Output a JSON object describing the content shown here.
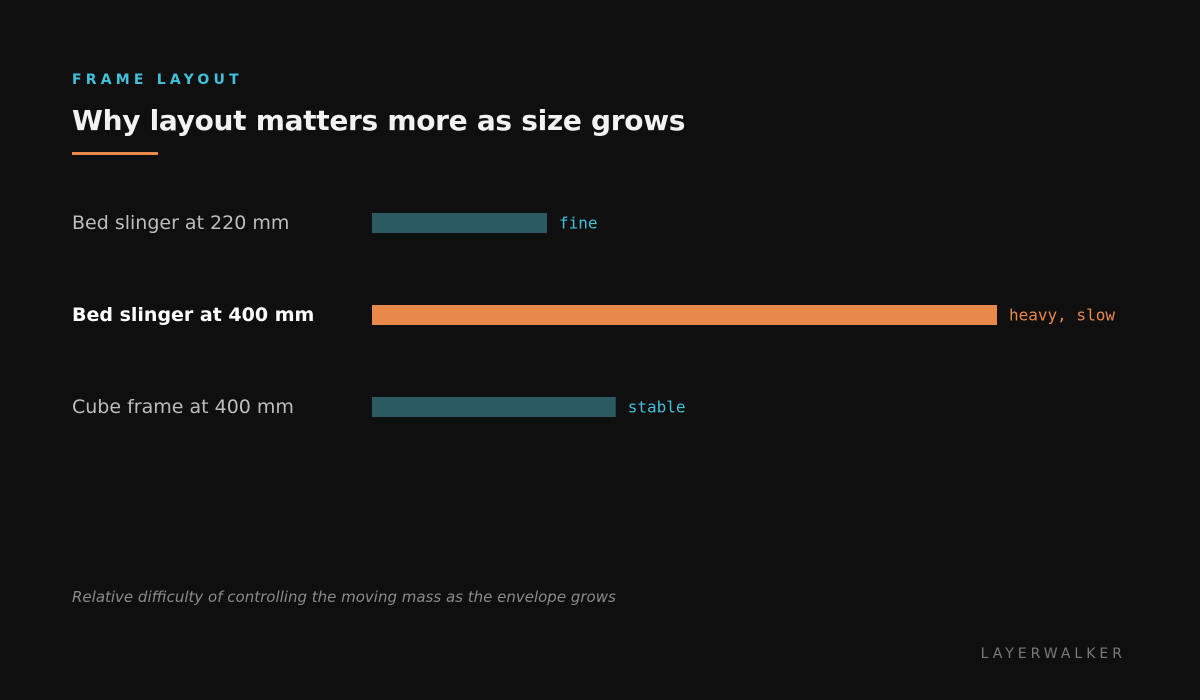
{
  "header": {
    "eyebrow": "FRAME LAYOUT",
    "title": "Why layout matters more as size grows"
  },
  "colors": {
    "accent_orange": "#e8894b",
    "accent_teal": "#3ec1d9",
    "bar_teal": "#2b5a63"
  },
  "chart_data": {
    "type": "bar",
    "orientation": "horizontal",
    "title": "Why layout matters more as size grows",
    "categories": [
      "Bed slinger at 220 mm",
      "Bed slinger at 400 mm",
      "Cube frame at 400 mm"
    ],
    "values": [
      28,
      100,
      39
    ],
    "value_labels": [
      "fine",
      "heavy, slow",
      "stable"
    ],
    "highlight_index": 1,
    "xlim": [
      0,
      100
    ],
    "grid": false,
    "legend": "none"
  },
  "caption": "Relative difficulty of controlling the moving mass as the envelope grows",
  "brand": "LAYERWALKER"
}
